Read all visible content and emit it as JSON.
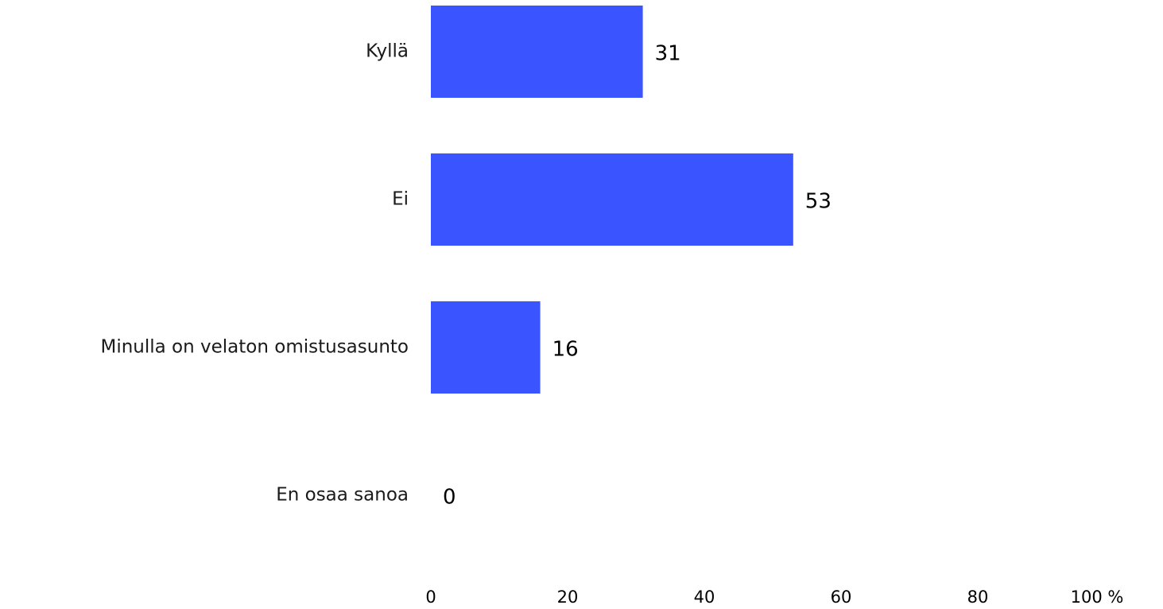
{
  "chart_data": {
    "type": "bar",
    "orientation": "horizontal",
    "categories": [
      "Kyllä",
      "Ei",
      "Minulla on velaton omistusasunto",
      "En osaa sanoa"
    ],
    "values": [
      31,
      53,
      16,
      0
    ],
    "xlim": [
      0,
      100
    ],
    "x_ticks": [
      0,
      20,
      40,
      60,
      80,
      100
    ],
    "x_tick_labels": [
      "0",
      "20",
      "40",
      "60",
      "80",
      "100 %"
    ],
    "grid": false,
    "legend": "none",
    "bar_color": "#3a55ff"
  }
}
